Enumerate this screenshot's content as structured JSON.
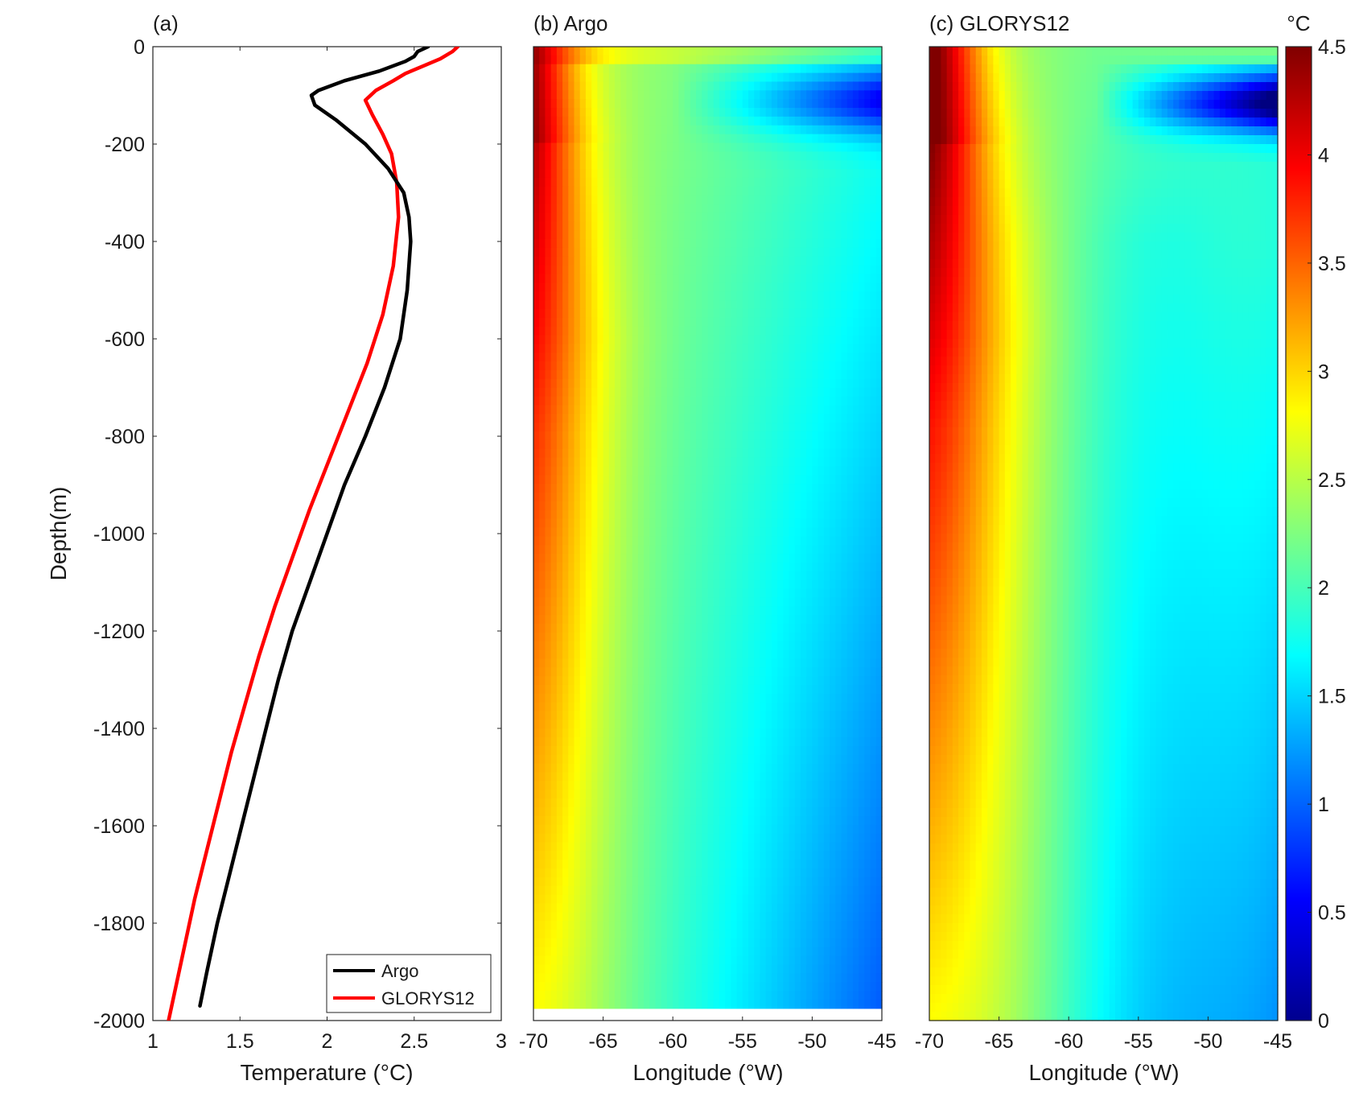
{
  "chart_data": [
    {
      "panel": "a",
      "type": "line",
      "title": "(a)",
      "xlabel": "Temperature (°C)",
      "ylabel": "Depth(m)",
      "xlim": [
        1,
        3
      ],
      "ylim": [
        -2000,
        0
      ],
      "xticks": [
        "1",
        "1.5",
        "2",
        "2.5",
        "3"
      ],
      "yticks": [
        "0",
        "-200",
        "-400",
        "-600",
        "-800",
        "-1000",
        "-1200",
        "-1400",
        "-1600",
        "-1800",
        "-2000"
      ],
      "legend_position": "bottom-right",
      "series": [
        {
          "name": "Argo",
          "color": "#000000",
          "points": [
            [
              2.58,
              0
            ],
            [
              2.55,
              -5
            ],
            [
              2.52,
              -10
            ],
            [
              2.5,
              -20
            ],
            [
              2.45,
              -30
            ],
            [
              2.3,
              -50
            ],
            [
              2.1,
              -70
            ],
            [
              1.95,
              -90
            ],
            [
              1.91,
              -100
            ],
            [
              1.93,
              -120
            ],
            [
              2.05,
              -150
            ],
            [
              2.22,
              -200
            ],
            [
              2.35,
              -250
            ],
            [
              2.44,
              -300
            ],
            [
              2.47,
              -350
            ],
            [
              2.48,
              -400
            ],
            [
              2.46,
              -500
            ],
            [
              2.42,
              -600
            ],
            [
              2.33,
              -700
            ],
            [
              2.22,
              -800
            ],
            [
              2.1,
              -900
            ],
            [
              2.0,
              -1000
            ],
            [
              1.9,
              -1100
            ],
            [
              1.8,
              -1200
            ],
            [
              1.72,
              -1300
            ],
            [
              1.65,
              -1400
            ],
            [
              1.58,
              -1500
            ],
            [
              1.51,
              -1600
            ],
            [
              1.44,
              -1700
            ],
            [
              1.37,
              -1800
            ],
            [
              1.31,
              -1900
            ],
            [
              1.27,
              -1970
            ]
          ]
        },
        {
          "name": "GLORYS12",
          "color": "#ff0000",
          "points": [
            [
              2.75,
              0
            ],
            [
              2.72,
              -10
            ],
            [
              2.65,
              -25
            ],
            [
              2.55,
              -40
            ],
            [
              2.45,
              -55
            ],
            [
              2.38,
              -70
            ],
            [
              2.28,
              -90
            ],
            [
              2.22,
              -110
            ],
            [
              2.26,
              -140
            ],
            [
              2.32,
              -180
            ],
            [
              2.37,
              -220
            ],
            [
              2.4,
              -280
            ],
            [
              2.41,
              -350
            ],
            [
              2.38,
              -450
            ],
            [
              2.32,
              -550
            ],
            [
              2.23,
              -650
            ],
            [
              2.12,
              -750
            ],
            [
              2.01,
              -850
            ],
            [
              1.9,
              -950
            ],
            [
              1.8,
              -1050
            ],
            [
              1.7,
              -1150
            ],
            [
              1.61,
              -1250
            ],
            [
              1.53,
              -1350
            ],
            [
              1.45,
              -1450
            ],
            [
              1.38,
              -1550
            ],
            [
              1.31,
              -1650
            ],
            [
              1.24,
              -1750
            ],
            [
              1.18,
              -1850
            ],
            [
              1.12,
              -1950
            ],
            [
              1.09,
              -2000
            ]
          ]
        }
      ]
    },
    {
      "panel": "b",
      "type": "heatmap",
      "title": "(b) Argo",
      "xlabel": "Longitude (°W)",
      "xlim": [
        -70,
        -45
      ],
      "ylim": [
        -2000,
        0
      ],
      "data_bottom_depth": -1975,
      "xticks": [
        "-70",
        "-65",
        "-60",
        "-55",
        "-50",
        "-45"
      ],
      "colorscale": "jet",
      "clim": [
        0,
        4.5
      ]
    },
    {
      "panel": "c",
      "type": "heatmap",
      "title": "(c) GLORYS12",
      "xlabel": "Longitude (°W)",
      "xlim": [
        -70,
        -45
      ],
      "ylim": [
        -2000,
        0
      ],
      "xticks": [
        "-70",
        "-65",
        "-60",
        "-55",
        "-50",
        "-45"
      ],
      "colorscale": "jet",
      "clim": [
        0,
        4.5
      ],
      "colorbar": {
        "unit": "°C",
        "ticks": [
          "0",
          "0.5",
          "1",
          "1.5",
          "2",
          "2.5",
          "3",
          "3.5",
          "4",
          "4.5"
        ]
      }
    }
  ]
}
